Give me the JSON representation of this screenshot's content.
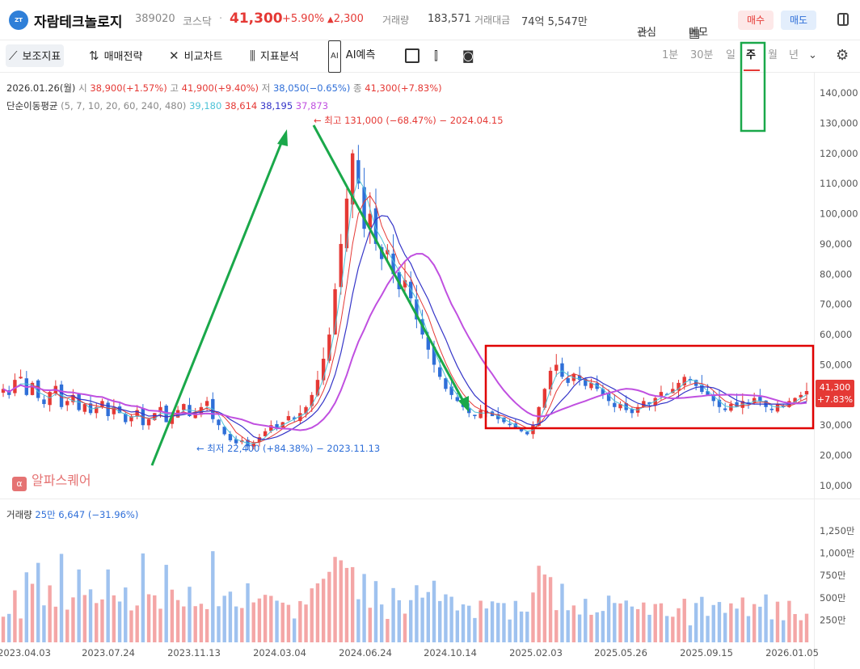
{
  "header": {
    "logo_icon": "company-logo-icon",
    "name": "자람테크놀로지",
    "code": "389020",
    "market": "코스닥",
    "price": "41,300",
    "change_pct": "+5.90%",
    "change_abs": "2,300",
    "volume_label": "거래량",
    "volume": "183,571",
    "amount_label": "거래대금",
    "amount": "74억 5,547만",
    "watch_label": "관심",
    "memo_label": "메모",
    "buy_label": "매수",
    "sell_label": "매도"
  },
  "toolbar": {
    "indicators_label": "보조지표",
    "strategy_label": "매매전략",
    "compare_label": "비교차트",
    "analysis_label": "지표분석",
    "ai_label": "AI예측",
    "timeframes": [
      "1분",
      "30분",
      "일",
      "주",
      "월",
      "년"
    ],
    "active_timeframe": "주"
  },
  "ohlc": {
    "date": "2026.01.26(월)",
    "open_label": "시",
    "open": "38,900",
    "open_pct": "(+1.57%)",
    "high_label": "고",
    "high": "41,900",
    "high_pct": "(+9.40%)",
    "low_label": "저",
    "low": "38,050",
    "low_pct": "(−0.65%)",
    "close_label": "종",
    "close": "41,300",
    "close_pct": "(+7.83%)"
  },
  "ma": {
    "label": "단순이동평균",
    "periods": "(5, 7, 10, 20, 60, 240, 480)",
    "values": [
      "39,180",
      "38,614",
      "38,195",
      "37,873"
    ],
    "colors": [
      "#4fc3d7",
      "#e53935",
      "#3535c8",
      "#c050e0"
    ]
  },
  "annotations": {
    "high": "최고 131,000 (−68.47%) − 2024.04.15",
    "low": "최저 22,400 (+84.38%) − 2023.11.13"
  },
  "watermark": "알파스퀘어",
  "price_tag": {
    "price": "41,300",
    "pct": "+7.83%"
  },
  "volume_panel": {
    "label": "거래량",
    "value": "25만 6,647 (−31.96%)"
  },
  "colors": {
    "up": "#e53935",
    "down": "#2f6fd8",
    "annotation": "#1aa84a",
    "box": "#e00000"
  },
  "chart_data": {
    "type": "candlestick",
    "y_ticks": [
      "140,000",
      "130,000",
      "120,000",
      "110,000",
      "100,000",
      "90,000",
      "80,000",
      "70,000",
      "60,000",
      "50,000",
      "40,000",
      "30,000",
      "20,000",
      "10,000"
    ],
    "y_values": [
      140000,
      130000,
      120000,
      110000,
      100000,
      90000,
      80000,
      70000,
      60000,
      50000,
      40000,
      30000,
      20000,
      10000
    ],
    "ylim": [
      10000,
      140000
    ],
    "vol_ticks": [
      "1,250만",
      "1,000만",
      "750만",
      "500만",
      "250만"
    ],
    "vol_values": [
      12500000,
      10000000,
      7500000,
      5000000,
      2500000
    ],
    "x_ticks": [
      "2023.04.03",
      "2023.07.24",
      "2023.11.13",
      "2024.03.04",
      "2024.06.24",
      "2024.10.14",
      "2025.02.03",
      "2025.05.26",
      "2025.09.15",
      "2026.01.05"
    ],
    "close_path": [
      42000,
      40000,
      45000,
      46000,
      40000,
      44000,
      39000,
      37000,
      41000,
      43000,
      36000,
      38000,
      40000,
      35000,
      37000,
      34000,
      36000,
      38000,
      33000,
      36000,
      34000,
      31000,
      33000,
      35000,
      30000,
      32000,
      34000,
      36000,
      31000,
      33000,
      35000,
      37000,
      33000,
      34000,
      36000,
      38000,
      32000,
      30000,
      27000,
      25000,
      24000,
      25000,
      23000,
      24000,
      26000,
      28000,
      30000,
      29000,
      31000,
      33000,
      32000,
      34000,
      36000,
      40000,
      45000,
      52000,
      60000,
      75000,
      90000,
      105000,
      120000,
      110000,
      95000,
      100000,
      90000,
      85000,
      88000,
      80000,
      75000,
      78000,
      72000,
      65000,
      60000,
      55000,
      50000,
      46000,
      42000,
      40000,
      38000,
      36000,
      34000,
      33000,
      35000,
      34000,
      33000,
      32000,
      31000,
      30000,
      29000,
      28000,
      27000,
      30000,
      36000,
      42000,
      48000,
      50000,
      46000,
      44000,
      47000,
      45000,
      43000,
      44000,
      42000,
      40000,
      38000,
      36000,
      37000,
      35000,
      34000,
      36000,
      38000,
      37000,
      39000,
      41000,
      40000,
      42000,
      44000,
      46000,
      45000,
      43000,
      41000,
      40000,
      38000,
      36000,
      35000,
      37000,
      36000,
      38000,
      37000,
      39000,
      38000,
      36000,
      35000,
      37000,
      36000,
      38000,
      39000,
      40000,
      41300
    ]
  }
}
